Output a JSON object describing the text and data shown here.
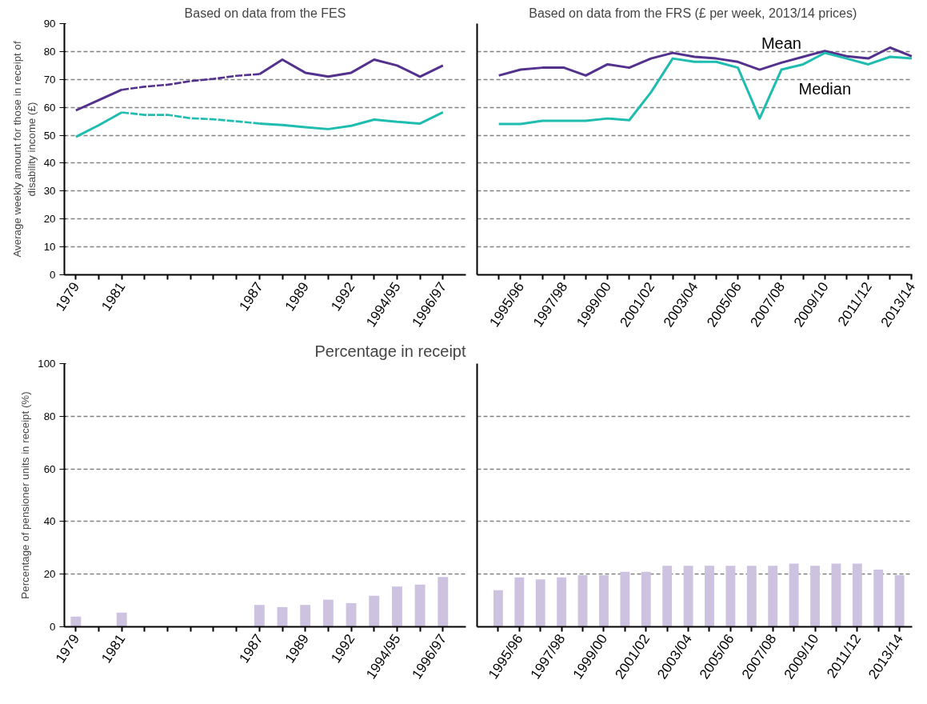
{
  "chart_data": [
    {
      "type": "line",
      "title": "Based on data from the FES",
      "ylabel": "Average weekly amount for those in receipt of disability income (£)",
      "categories": [
        "1979",
        null,
        "1981",
        null,
        null,
        null,
        null,
        null,
        "1987",
        null,
        "1989",
        null,
        "1992",
        null,
        "1994/95",
        null,
        "1996/97"
      ],
      "ylim": [
        0,
        90
      ],
      "yticks": [
        0,
        10,
        20,
        30,
        40,
        50,
        60,
        70,
        80,
        90
      ],
      "grid": "y",
      "series": [
        {
          "color": "#54318c",
          "line_style": "dashed",
          "values": [
            null,
            null,
            66.3,
            67.4,
            68.1,
            69.4,
            70.2,
            71.3,
            71.9,
            null,
            null,
            null,
            null,
            null,
            null,
            null,
            null
          ]
        },
        {
          "color": "#54318c",
          "values": [
            58.9,
            62.6,
            66.3,
            null,
            null,
            null,
            null,
            null,
            71.9,
            77.1,
            72.4,
            71.0,
            72.4,
            77.1,
            75.0,
            71.0,
            75.0
          ]
        },
        {
          "color": "#1fbcb0",
          "line_style": "dashed",
          "values": [
            null,
            null,
            58.2,
            57.3,
            57.3,
            56.1,
            55.7,
            55.0,
            54.2,
            null,
            null,
            null,
            null,
            null,
            null,
            null,
            null
          ]
        },
        {
          "color": "#1fbcb0",
          "values": [
            49.4,
            53.6,
            58.2,
            null,
            null,
            null,
            null,
            null,
            54.2,
            53.7,
            52.9,
            52.2,
            53.4,
            55.6,
            54.8,
            54.2,
            58.2
          ]
        }
      ]
    },
    {
      "type": "line",
      "title": "Based on data from the FRS  (£ per week, 2013/14 prices)",
      "categories": [
        null,
        "1995/96",
        null,
        "1997/98",
        null,
        "1999/00",
        null,
        "2001/02",
        null,
        "2003/04",
        null,
        "2005/06",
        null,
        "2007/08",
        null,
        "2009/10",
        null,
        "2011/12",
        null,
        "2013/14"
      ],
      "ylim": [
        0,
        90
      ],
      "yticks": [
        0,
        10,
        20,
        30,
        40,
        50,
        60,
        70,
        80,
        90
      ],
      "grid": "y",
      "tick_labels": "x",
      "series": [
        {
          "name": "Mean",
          "color": "#54318c",
          "values": [
            71.4,
            73.5,
            74.2,
            74.2,
            71.4,
            75.4,
            74.2,
            77.5,
            79.5,
            78.1,
            77.5,
            76.3,
            73.5,
            76.0,
            78.1,
            80.2,
            78.3,
            77.5,
            81.4,
            78.3
          ]
        },
        {
          "name": "Median",
          "color": "#1fbcb0",
          "values": [
            54.0,
            54.0,
            55.2,
            55.2,
            55.2,
            56.0,
            55.4,
            65.4,
            77.5,
            76.3,
            76.3,
            74.2,
            56.0,
            73.5,
            75.4,
            79.5,
            77.5,
            75.4,
            78.1,
            77.5
          ]
        }
      ]
    },
    {
      "type": "bar",
      "title": "Percentage in receipt",
      "ylabel": "Percentage of pensioner units in receipt (%)",
      "categories": [
        "1979",
        null,
        "1981",
        null,
        null,
        null,
        null,
        null,
        "1987",
        null,
        "1989",
        null,
        "1992",
        null,
        "1994/95",
        null,
        "1996/97"
      ],
      "ylim": [
        0,
        100
      ],
      "yticks": [
        0,
        20,
        40,
        60,
        80,
        100
      ],
      "grid": "y",
      "color": "#cdc3e0",
      "values": [
        3.9,
        null,
        5.4,
        null,
        null,
        null,
        null,
        null,
        8.3,
        7.5,
        8.3,
        10.3,
        9.0,
        11.8,
        15.3,
        16.0,
        18.9
      ]
    },
    {
      "type": "bar",
      "categories": [
        null,
        "1995/96",
        null,
        "1997/98",
        null,
        "1999/00",
        null,
        "2001/02",
        null,
        "2003/04",
        null,
        "2005/06",
        null,
        "2007/08",
        null,
        "2009/10",
        null,
        "2011/12",
        null,
        "2013/14"
      ],
      "ylim": [
        0,
        100
      ],
      "yticks": [
        0,
        20,
        40,
        60,
        80,
        100
      ],
      "grid": "y",
      "tick_labels": "x",
      "color": "#cdc3e0",
      "values": [
        13.9,
        18.8,
        18.0,
        18.8,
        19.6,
        19.6,
        20.9,
        20.9,
        23.2,
        23.2,
        23.2,
        23.2,
        23.2,
        23.2,
        24.0,
        23.2,
        24.0,
        24.0,
        21.7,
        19.6
      ]
    }
  ]
}
